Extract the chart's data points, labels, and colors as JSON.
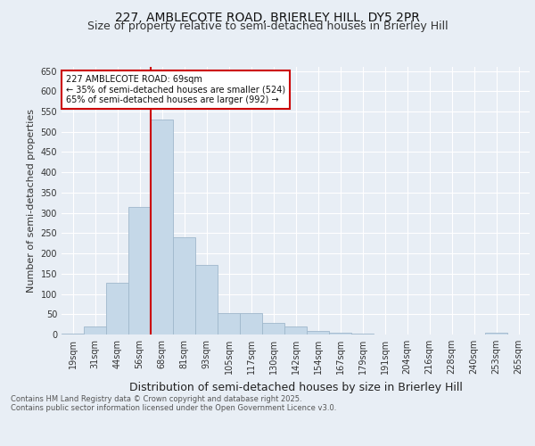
{
  "title1": "227, AMBLECOTE ROAD, BRIERLEY HILL, DY5 2PR",
  "title2": "Size of property relative to semi-detached houses in Brierley Hill",
  "xlabel": "Distribution of semi-detached houses by size in Brierley Hill",
  "ylabel": "Number of semi-detached properties",
  "categories": [
    "19sqm",
    "31sqm",
    "44sqm",
    "56sqm",
    "68sqm",
    "81sqm",
    "93sqm",
    "105sqm",
    "117sqm",
    "130sqm",
    "142sqm",
    "154sqm",
    "167sqm",
    "179sqm",
    "191sqm",
    "204sqm",
    "216sqm",
    "228sqm",
    "240sqm",
    "253sqm",
    "265sqm"
  ],
  "values": [
    3,
    20,
    128,
    315,
    530,
    240,
    172,
    52,
    52,
    28,
    20,
    8,
    5,
    2,
    1,
    1,
    1,
    0,
    0,
    4,
    0
  ],
  "bar_color": "#c5d8e8",
  "bar_edge_color": "#a0b8cc",
  "vline_bin_index": 4,
  "vline_color": "#cc0000",
  "annotation_box_text": "227 AMBLECOTE ROAD: 69sqm\n← 35% of semi-detached houses are smaller (524)\n65% of semi-detached houses are larger (992) →",
  "annotation_box_color": "#cc0000",
  "annotation_box_facecolor": "white",
  "background_color": "#e8eef5",
  "grid_color": "white",
  "footer_text": "Contains HM Land Registry data © Crown copyright and database right 2025.\nContains public sector information licensed under the Open Government Licence v3.0.",
  "ylim": [
    0,
    660
  ],
  "yticks": [
    0,
    50,
    100,
    150,
    200,
    250,
    300,
    350,
    400,
    450,
    500,
    550,
    600,
    650
  ],
  "title_fontsize": 10,
  "subtitle_fontsize": 9,
  "annotation_fontsize": 7,
  "ylabel_fontsize": 8,
  "xlabel_fontsize": 9,
  "tick_fontsize": 7,
  "footer_fontsize": 6
}
